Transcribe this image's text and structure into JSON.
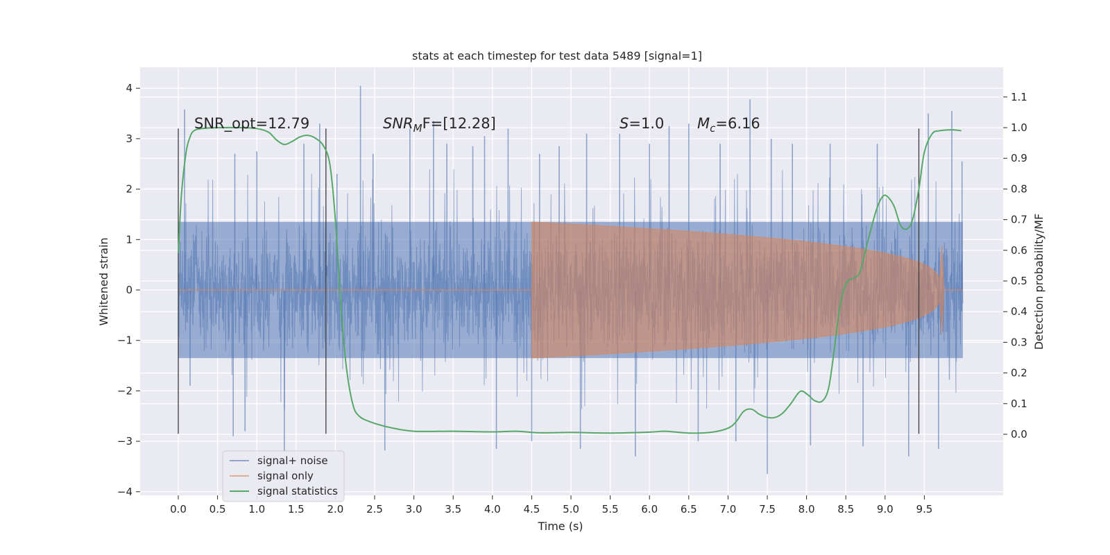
{
  "chart_data": {
    "type": "line",
    "title": "stats at each timestep for test data 5489 [signal=1]",
    "xlabel": "Time (s)",
    "ylabel_left": "Whitened strain",
    "ylabel_right": "Detection probability/MF",
    "xlim": [
      -0.5,
      10.5
    ],
    "ylim_left": [
      -4.2,
      4.4
    ],
    "ylim_right": [
      -0.2,
      1.2
    ],
    "x_ticks": [
      "0.0",
      "0.5",
      "1.0",
      "1.5",
      "2.0",
      "2.5",
      "3.0",
      "3.5",
      "4.0",
      "4.5",
      "5.0",
      "5.5",
      "6.0",
      "6.5",
      "7.0",
      "7.5",
      "8.0",
      "8.5",
      "9.0",
      "9.5"
    ],
    "y_left_ticks": [
      "4",
      "3",
      "2",
      "1",
      "0",
      "−1",
      "−2",
      "−3",
      "−4"
    ],
    "y_right_ticks": [
      "1.1",
      "1.0",
      "0.9",
      "0.8",
      "0.7",
      "0.6",
      "0.5",
      "0.4",
      "0.3",
      "0.2",
      "0.1",
      "0.0"
    ],
    "grid": true,
    "legend_position": "bottom-left",
    "annotations": {
      "snr_opt": "SNR_opt=12.79",
      "snr_mf_sym": "SNR",
      "snr_mf_sub": "M",
      "snr_mf_rest": "F=[12.28]",
      "s_sym": "S",
      "s_rest": "=1.0",
      "mc_sym": "M",
      "mc_sub": "c",
      "mc_rest": "=6.16"
    },
    "vlines_x": [
      0.0,
      1.88,
      9.43
    ],
    "vline_range": [
      -2.85,
      3.2
    ],
    "series": [
      {
        "name": "signal+ noise",
        "color": "#4c72b0",
        "axis": "left",
        "noise_band_abs": 1.35,
        "x_range": [
          0.0,
          9.99
        ],
        "peaks": [
          [
            0.08,
            3.58
          ],
          [
            0.15,
            -1.9
          ],
          [
            0.7,
            -2.9
          ],
          [
            0.72,
            2.7
          ],
          [
            0.85,
            -2.8
          ],
          [
            1.0,
            2.75
          ],
          [
            1.35,
            -3.2
          ],
          [
            1.6,
            2.9
          ],
          [
            1.8,
            3.3
          ],
          [
            2.02,
            2.3
          ],
          [
            2.32,
            4.05
          ],
          [
            2.48,
            2.7
          ],
          [
            2.63,
            -3.18
          ],
          [
            2.95,
            3.2
          ],
          [
            3.25,
            3.35
          ],
          [
            3.42,
            2.9
          ],
          [
            3.75,
            2.85
          ],
          [
            3.9,
            3.05
          ],
          [
            4.05,
            -3.15
          ],
          [
            4.2,
            3.2
          ],
          [
            4.5,
            -3.0
          ],
          [
            4.6,
            2.7
          ],
          [
            4.85,
            2.85
          ],
          [
            5.12,
            -3.15
          ],
          [
            5.2,
            3.1
          ],
          [
            5.62,
            3.1
          ],
          [
            5.82,
            -3.3
          ],
          [
            6.0,
            2.9
          ],
          [
            6.25,
            3.25
          ],
          [
            6.5,
            3.3
          ],
          [
            6.62,
            -3.0
          ],
          [
            6.9,
            2.9
          ],
          [
            7.1,
            -3.0
          ],
          [
            7.28,
            3.78
          ],
          [
            7.5,
            -3.65
          ],
          [
            7.55,
            3.0
          ],
          [
            7.82,
            2.9
          ],
          [
            8.05,
            -3.08
          ],
          [
            8.3,
            2.9
          ],
          [
            8.72,
            -3.1
          ],
          [
            8.9,
            2.9
          ],
          [
            9.3,
            -3.3
          ],
          [
            9.55,
            3.5
          ],
          [
            9.68,
            -3.15
          ],
          [
            9.85,
            3.55
          ],
          [
            9.98,
            2.55
          ]
        ]
      },
      {
        "name": "signal only",
        "color": "#dd8452",
        "axis": "left",
        "chirp": {
          "start": 4.5,
          "end": 9.71,
          "amp_max": 1.35,
          "amp_half_at_x": 9.43,
          "amp_half": 0.55,
          "ringdown_end": 9.75
        }
      },
      {
        "name": "signal statistics",
        "color": "#55a868",
        "axis": "right",
        "points": [
          [
            0.0,
            0.59
          ],
          [
            0.04,
            0.78
          ],
          [
            0.1,
            0.92
          ],
          [
            0.15,
            0.97
          ],
          [
            0.2,
            0.99
          ],
          [
            0.3,
            0.997
          ],
          [
            0.5,
            1.0
          ],
          [
            0.8,
            1.0
          ],
          [
            1.0,
            0.997
          ],
          [
            1.15,
            0.985
          ],
          [
            1.25,
            0.96
          ],
          [
            1.35,
            0.945
          ],
          [
            1.45,
            0.955
          ],
          [
            1.55,
            0.97
          ],
          [
            1.65,
            0.975
          ],
          [
            1.75,
            0.965
          ],
          [
            1.85,
            0.94
          ],
          [
            1.93,
            0.88
          ],
          [
            2.0,
            0.7
          ],
          [
            2.07,
            0.42
          ],
          [
            2.14,
            0.22
          ],
          [
            2.22,
            0.1
          ],
          [
            2.3,
            0.06
          ],
          [
            2.45,
            0.04
          ],
          [
            2.7,
            0.022
          ],
          [
            3.0,
            0.01
          ],
          [
            3.5,
            0.01
          ],
          [
            4.0,
            0.008
          ],
          [
            4.3,
            0.01
          ],
          [
            4.6,
            0.005
          ],
          [
            5.0,
            0.006
          ],
          [
            5.5,
            0.004
          ],
          [
            6.0,
            0.007
          ],
          [
            6.2,
            0.01
          ],
          [
            6.5,
            0.004
          ],
          [
            6.8,
            0.007
          ],
          [
            7.0,
            0.02
          ],
          [
            7.1,
            0.04
          ],
          [
            7.2,
            0.075
          ],
          [
            7.3,
            0.082
          ],
          [
            7.4,
            0.065
          ],
          [
            7.5,
            0.055
          ],
          [
            7.6,
            0.055
          ],
          [
            7.7,
            0.07
          ],
          [
            7.8,
            0.1
          ],
          [
            7.92,
            0.14
          ],
          [
            8.02,
            0.128
          ],
          [
            8.1,
            0.11
          ],
          [
            8.2,
            0.108
          ],
          [
            8.28,
            0.15
          ],
          [
            8.35,
            0.27
          ],
          [
            8.42,
            0.41
          ],
          [
            8.5,
            0.49
          ],
          [
            8.6,
            0.51
          ],
          [
            8.68,
            0.53
          ],
          [
            8.8,
            0.65
          ],
          [
            8.9,
            0.74
          ],
          [
            8.98,
            0.778
          ],
          [
            9.05,
            0.77
          ],
          [
            9.12,
            0.74
          ],
          [
            9.2,
            0.68
          ],
          [
            9.28,
            0.67
          ],
          [
            9.35,
            0.7
          ],
          [
            9.43,
            0.8
          ],
          [
            9.5,
            0.92
          ],
          [
            9.6,
            0.98
          ],
          [
            9.7,
            0.99
          ],
          [
            9.85,
            0.993
          ],
          [
            9.97,
            0.99
          ]
        ]
      }
    ]
  }
}
